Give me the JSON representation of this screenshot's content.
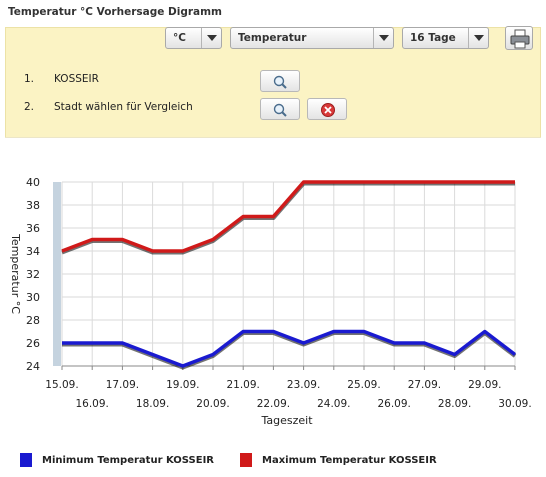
{
  "window": {
    "title": "Temperatur °C Vorhersage Digramm"
  },
  "controls": {
    "unit": {
      "value": "°C"
    },
    "metric": {
      "value": "Temperatur"
    },
    "range": {
      "value": "16 Tage"
    },
    "print_icon": "printer-icon"
  },
  "cities": [
    {
      "index": "1.",
      "name": "KOSSEIR",
      "buttons": [
        "search-icon"
      ]
    },
    {
      "index": "2.",
      "name": "Stadt wählen für Vergleich",
      "buttons": [
        "search-icon",
        "remove-icon"
      ]
    }
  ],
  "colors": {
    "panel": "#fbf3c4",
    "min": "#1a1ad0",
    "max": "#d01a1a"
  },
  "chart_data": {
    "type": "line",
    "x": [
      "15.09.",
      "16.09.",
      "17.09.",
      "18.09.",
      "19.09.",
      "20.09.",
      "21.09.",
      "22.09.",
      "23.09.",
      "24.09.",
      "25.09.",
      "26.09.",
      "27.09.",
      "28.09.",
      "29.09.",
      "30.09."
    ],
    "series": [
      {
        "name": "Minimum Temperatur KOSSEIR",
        "color": "#1a1ad0",
        "points": [
          [
            0,
            26
          ],
          [
            2,
            26
          ],
          [
            4,
            24
          ],
          [
            5,
            25
          ],
          [
            6,
            27
          ],
          [
            7,
            27
          ],
          [
            8,
            26
          ],
          [
            9,
            27
          ],
          [
            10,
            27
          ],
          [
            11,
            26
          ],
          [
            12,
            26
          ],
          [
            13,
            25
          ],
          [
            14,
            27
          ],
          [
            15,
            25
          ]
        ]
      },
      {
        "name": "Maximum Temperatur KOSSEIR",
        "color": "#d01a1a",
        "points": [
          [
            0,
            34
          ],
          [
            1,
            35
          ],
          [
            2,
            35
          ],
          [
            3,
            34
          ],
          [
            4,
            34
          ],
          [
            5,
            35
          ],
          [
            6,
            37
          ],
          [
            7,
            37
          ],
          [
            8,
            40
          ],
          [
            15,
            40
          ]
        ]
      }
    ],
    "xlabel": "Tageszeit",
    "ylabel": "Temperatur °C",
    "ylim": [
      24,
      40
    ],
    "yticks": [
      24,
      26,
      28,
      30,
      32,
      34,
      36,
      38,
      40
    ],
    "grid": true,
    "legend": "bottom"
  }
}
